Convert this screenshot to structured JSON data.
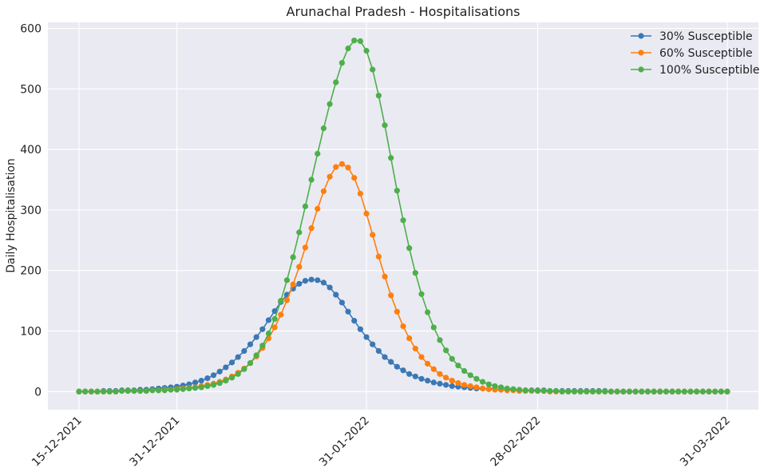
{
  "chart_data": {
    "type": "line",
    "title": "Arunachal Pradesh - Hospitalisations",
    "xlabel": "",
    "ylabel": "Daily Hospitalisation",
    "x_start_date": "15-12-2021",
    "x_end_date": "31-03-2022",
    "x_tick_labels": [
      "15-12-2021",
      "31-12-2021",
      "31-01-2022",
      "28-02-2022",
      "31-03-2022"
    ],
    "y_ticks": [
      0,
      100,
      200,
      300,
      400,
      500,
      600
    ],
    "ylim": [
      -30,
      610
    ],
    "grid": true,
    "legend_position": "top-right",
    "background_color": "#eaeaf2",
    "x": [
      "15-12-2021",
      "16-12-2021",
      "17-12-2021",
      "18-12-2021",
      "19-12-2021",
      "20-12-2021",
      "21-12-2021",
      "22-12-2021",
      "23-12-2021",
      "24-12-2021",
      "25-12-2021",
      "26-12-2021",
      "27-12-2021",
      "28-12-2021",
      "29-12-2021",
      "30-12-2021",
      "31-12-2021",
      "01-01-2022",
      "02-01-2022",
      "03-01-2022",
      "04-01-2022",
      "05-01-2022",
      "06-01-2022",
      "07-01-2022",
      "08-01-2022",
      "09-01-2022",
      "10-01-2022",
      "11-01-2022",
      "12-01-2022",
      "13-01-2022",
      "14-01-2022",
      "15-01-2022",
      "16-01-2022",
      "17-01-2022",
      "18-01-2022",
      "19-01-2022",
      "20-01-2022",
      "21-01-2022",
      "22-01-2022",
      "23-01-2022",
      "24-01-2022",
      "25-01-2022",
      "26-01-2022",
      "27-01-2022",
      "28-01-2022",
      "29-01-2022",
      "30-01-2022",
      "31-01-2022",
      "01-02-2022",
      "02-02-2022",
      "03-02-2022",
      "04-02-2022",
      "05-02-2022",
      "06-02-2022",
      "07-02-2022",
      "08-02-2022",
      "09-02-2022",
      "10-02-2022",
      "11-02-2022",
      "12-02-2022",
      "13-02-2022",
      "14-02-2022",
      "15-02-2022",
      "16-02-2022",
      "17-02-2022",
      "18-02-2022",
      "19-02-2022",
      "20-02-2022",
      "21-02-2022",
      "22-02-2022",
      "23-02-2022",
      "24-02-2022",
      "25-02-2022",
      "26-02-2022",
      "27-02-2022",
      "28-02-2022",
      "01-03-2022",
      "02-03-2022",
      "03-03-2022",
      "04-03-2022",
      "05-03-2022",
      "06-03-2022",
      "07-03-2022",
      "08-03-2022",
      "09-03-2022",
      "10-03-2022",
      "11-03-2022",
      "12-03-2022",
      "13-03-2022",
      "14-03-2022",
      "15-03-2022",
      "16-03-2022",
      "17-03-2022",
      "18-03-2022",
      "19-03-2022",
      "20-03-2022",
      "21-03-2022",
      "22-03-2022",
      "23-03-2022",
      "24-03-2022",
      "25-03-2022",
      "26-03-2022",
      "27-03-2022",
      "28-03-2022",
      "29-03-2022",
      "30-03-2022",
      "31-03-2022"
    ],
    "series": [
      {
        "name": "30% Susceptible",
        "color": "#3a78b5",
        "values": [
          0,
          0,
          0,
          0,
          1,
          1,
          1,
          2,
          2,
          2,
          3,
          3,
          4,
          5,
          6,
          7,
          8,
          10,
          12,
          15,
          18,
          22,
          27,
          33,
          40,
          48,
          57,
          67,
          78,
          90,
          103,
          118,
          133,
          148,
          160,
          170,
          178,
          183,
          185,
          184,
          180,
          172,
          160,
          147,
          132,
          117,
          103,
          90,
          78,
          67,
          57,
          49,
          41,
          35,
          29,
          25,
          21,
          18,
          15,
          13,
          11,
          9,
          8,
          7,
          6,
          5,
          5,
          4,
          4,
          3,
          3,
          3,
          2,
          2,
          2,
          2,
          2,
          1,
          1,
          1,
          1,
          1,
          1,
          1,
          1,
          1,
          1,
          0,
          0,
          0,
          0,
          0,
          0,
          0,
          0,
          0,
          0,
          0,
          0,
          0,
          0,
          0,
          0,
          0,
          0,
          0,
          0
        ]
      },
      {
        "name": "60% Susceptible",
        "color": "#ff7f0e",
        "values": [
          0,
          0,
          0,
          0,
          0,
          0,
          0,
          1,
          1,
          1,
          1,
          1,
          2,
          2,
          3,
          3,
          4,
          5,
          6,
          7,
          9,
          11,
          13,
          16,
          20,
          25,
          31,
          38,
          47,
          58,
          72,
          88,
          106,
          127,
          151,
          177,
          206,
          238,
          270,
          302,
          331,
          355,
          371,
          376,
          370,
          353,
          327,
          294,
          259,
          223,
          190,
          159,
          132,
          108,
          88,
          71,
          57,
          46,
          37,
          29,
          23,
          18,
          14,
          11,
          9,
          7,
          5,
          4,
          3,
          3,
          2,
          2,
          1,
          1,
          1,
          1,
          1,
          0,
          0,
          0,
          0,
          0,
          0,
          0,
          0,
          0,
          0,
          0,
          0,
          0,
          0,
          0,
          0,
          0,
          0,
          0,
          0,
          0,
          0,
          0,
          0,
          0,
          0,
          0,
          0,
          0,
          0
        ]
      },
      {
        "name": "100% Susceptible",
        "color": "#4daf4a",
        "values": [
          0,
          0,
          0,
          0,
          0,
          0,
          0,
          1,
          1,
          1,
          1,
          1,
          2,
          2,
          2,
          3,
          3,
          4,
          5,
          6,
          7,
          9,
          11,
          14,
          18,
          23,
          29,
          37,
          47,
          60,
          76,
          96,
          120,
          150,
          184,
          222,
          263,
          306,
          350,
          393,
          435,
          475,
          511,
          543,
          567,
          580,
          579,
          563,
          532,
          489,
          440,
          386,
          332,
          283,
          237,
          196,
          161,
          131,
          106,
          85,
          68,
          54,
          43,
          34,
          27,
          21,
          16,
          12,
          9,
          7,
          5,
          4,
          3,
          2,
          2,
          1,
          1,
          1,
          1,
          0,
          0,
          0,
          0,
          0,
          0,
          0,
          0,
          0,
          0,
          0,
          0,
          0,
          0,
          0,
          0,
          0,
          0,
          0,
          0,
          0,
          0,
          0,
          0,
          0,
          0,
          0,
          0
        ]
      }
    ]
  }
}
